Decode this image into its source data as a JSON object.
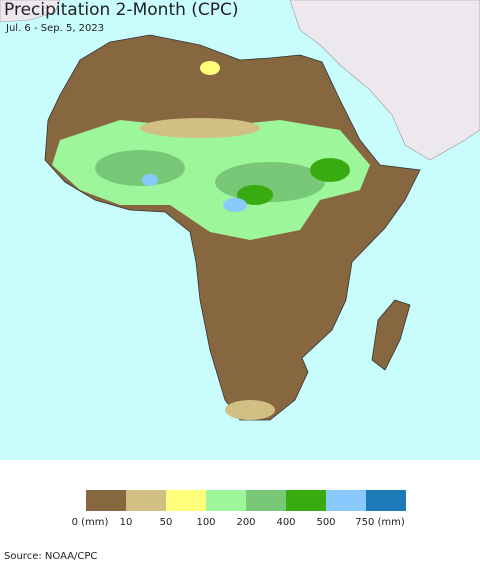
{
  "title": "Precipitation 2-Month (CPC)",
  "subtitle": "Jul. 6 - Sep. 5, 2023",
  "legend": {
    "colors": [
      "#86673f",
      "#d2bf84",
      "#fefe7a",
      "#9ef69a",
      "#78c877",
      "#38ab11",
      "#89c9fb",
      "#1d7ab9"
    ],
    "labels": [
      "0 (mm)",
      "10",
      "50",
      "100",
      "200",
      "400",
      "500",
      "750 (mm)"
    ]
  },
  "source": "Source: NOAA/CPC"
}
